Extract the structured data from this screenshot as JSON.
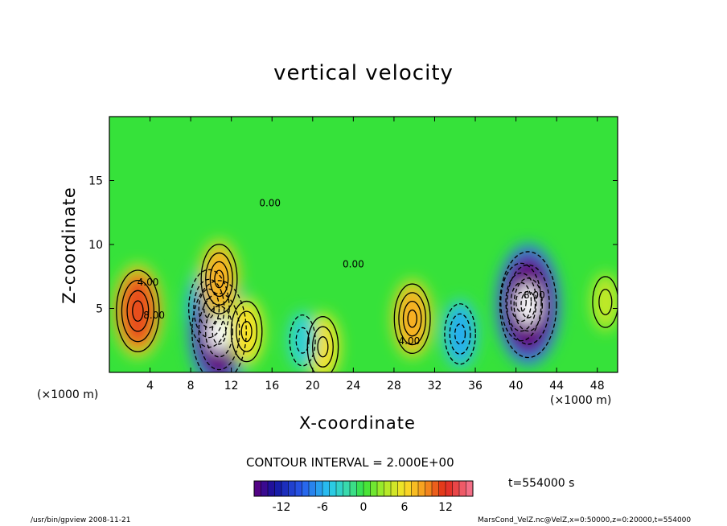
{
  "chart_data": {
    "type": "heatmap",
    "title": "vertical velocity",
    "xlabel": "X-coordinate",
    "ylabel": "Z-coordinate",
    "x_unit_label_left": "(×1000 m)",
    "x_unit_label_right": "(×1000 m)",
    "xlim": [
      0,
      50
    ],
    "ylim": [
      0,
      20
    ],
    "x_ticks": [
      4,
      8,
      12,
      16,
      20,
      24,
      28,
      32,
      36,
      40,
      44,
      48
    ],
    "y_ticks": [
      5,
      10,
      15
    ],
    "contour_interval_text": "CONTOUR INTERVAL = 2.000E+00",
    "contour_labels": [
      "4.00",
      "8.00",
      "0.00",
      "-4.00"
    ],
    "colorbar": {
      "min": -16,
      "max": 16,
      "ticks": [
        -12,
        -6,
        0,
        6,
        12
      ]
    },
    "features": [
      {
        "x": 2.8,
        "z": 4.8,
        "value": 11
      },
      {
        "x": 9.8,
        "z": 5.0,
        "value": -10
      },
      {
        "x": 10.8,
        "z": 3.2,
        "value": -16
      },
      {
        "x": 10.8,
        "z": 7.3,
        "value": 8
      },
      {
        "x": 13.5,
        "z": 3.2,
        "value": 6
      },
      {
        "x": 21.0,
        "z": 2.0,
        "value": 6
      },
      {
        "x": 19.0,
        "z": 2.5,
        "value": -4
      },
      {
        "x": 29.8,
        "z": 4.2,
        "value": 8
      },
      {
        "x": 34.5,
        "z": 3.0,
        "value": -6
      },
      {
        "x": 40.5,
        "z": 5.5,
        "value": -10
      },
      {
        "x": 41.2,
        "z": 5.3,
        "value": -17
      },
      {
        "x": 48.8,
        "z": 5.5,
        "value": 4
      }
    ],
    "time_label": "t=554000 s"
  },
  "footer": {
    "left": "/usr/bin/gpview   2008-11-21",
    "right": "MarsCond_VelZ.nc@VelZ,x=0:50000,z=0:20000,t=554000"
  },
  "colors": {
    "background_field": "#2fe63c",
    "positive_max": "#e0201a",
    "negative_max": "#1414b4"
  }
}
